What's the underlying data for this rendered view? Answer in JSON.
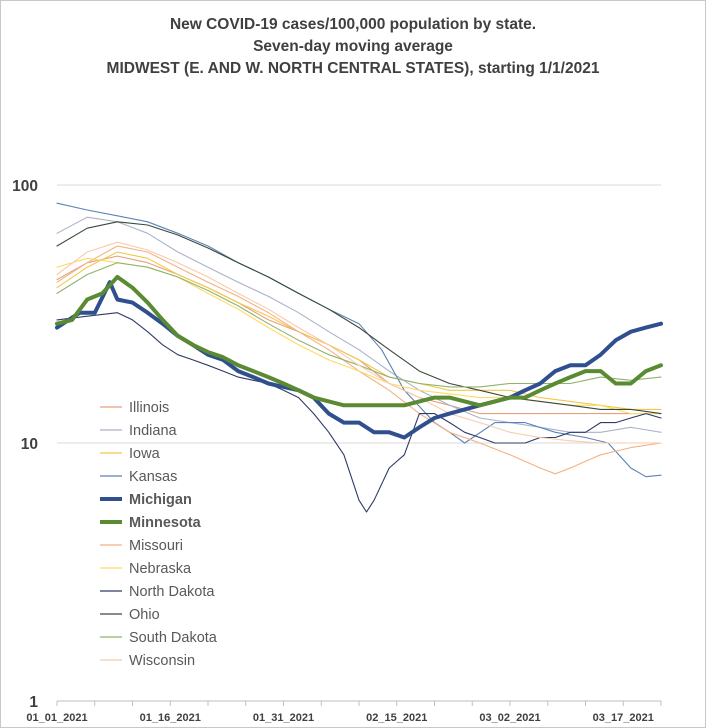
{
  "chart_data": {
    "type": "line",
    "title": [
      "New COVID-19 cases/100,000 population by state.",
      "Seven-day moving average",
      "MIDWEST (E. AND W. NORTH CENTRAL STATES), starting 1/1/2021"
    ],
    "y_scale": "log",
    "ylim": [
      1,
      100
    ],
    "y_ticks": [
      "1",
      "10",
      "100"
    ],
    "x_ticks": [
      "01_01_2021",
      "01_16_2021",
      "01_31_2021",
      "02_15_2021",
      "03_02_2021",
      "03_17_2021"
    ],
    "x_range_days": [
      0,
      80
    ],
    "grid": "horizontal major gridlines only",
    "legend_position": "left, inside plot area",
    "series": [
      {
        "name": "Illinois",
        "color": "#e6a07a",
        "bold": false,
        "points": [
          [
            0,
            43
          ],
          [
            4,
            50
          ],
          [
            8,
            53
          ],
          [
            12,
            50
          ],
          [
            16,
            45
          ],
          [
            20,
            40
          ],
          [
            24,
            35
          ],
          [
            28,
            30
          ],
          [
            32,
            27
          ],
          [
            36,
            24
          ],
          [
            40,
            21
          ],
          [
            44,
            17
          ],
          [
            48,
            15
          ],
          [
            52,
            14
          ],
          [
            56,
            13
          ],
          [
            60,
            13
          ],
          [
            64,
            13
          ],
          [
            68,
            13
          ],
          [
            72,
            13
          ],
          [
            76,
            13
          ],
          [
            80,
            13
          ]
        ]
      },
      {
        "name": "Indiana",
        "color": "#a9b4c8",
        "bold": false,
        "points": [
          [
            0,
            65
          ],
          [
            4,
            75
          ],
          [
            8,
            72
          ],
          [
            12,
            65
          ],
          [
            16,
            55
          ],
          [
            20,
            48
          ],
          [
            24,
            42
          ],
          [
            28,
            37
          ],
          [
            32,
            32
          ],
          [
            36,
            27
          ],
          [
            40,
            23
          ],
          [
            44,
            19
          ],
          [
            48,
            16
          ],
          [
            52,
            14
          ],
          [
            56,
            12.5
          ],
          [
            60,
            12
          ],
          [
            64,
            11.5
          ],
          [
            68,
            11
          ],
          [
            72,
            11
          ],
          [
            76,
            11.5
          ],
          [
            80,
            11
          ]
        ]
      },
      {
        "name": "Iowa",
        "color": "#f2c84b",
        "bold": false,
        "points": [
          [
            0,
            40
          ],
          [
            4,
            48
          ],
          [
            8,
            55
          ],
          [
            12,
            52
          ],
          [
            16,
            45
          ],
          [
            20,
            40
          ],
          [
            24,
            35
          ],
          [
            28,
            31
          ],
          [
            32,
            27
          ],
          [
            36,
            24
          ],
          [
            40,
            21
          ],
          [
            44,
            18
          ],
          [
            48,
            17
          ],
          [
            52,
            16
          ],
          [
            56,
            16
          ],
          [
            60,
            16
          ],
          [
            64,
            15
          ],
          [
            68,
            14.5
          ],
          [
            72,
            14
          ],
          [
            76,
            13.5
          ],
          [
            80,
            13.5
          ]
        ]
      },
      {
        "name": "Kansas",
        "color": "#5b82b9",
        "bold": false,
        "points": [
          [
            0,
            85
          ],
          [
            4,
            80
          ],
          [
            8,
            76
          ],
          [
            12,
            72
          ],
          [
            16,
            65
          ],
          [
            20,
            58
          ],
          [
            24,
            50
          ],
          [
            28,
            44
          ],
          [
            32,
            38
          ],
          [
            36,
            33
          ],
          [
            40,
            29
          ],
          [
            43,
            23
          ],
          [
            46,
            16
          ],
          [
            50,
            12
          ],
          [
            52,
            11
          ],
          [
            54,
            10
          ],
          [
            58,
            12
          ],
          [
            62,
            12
          ],
          [
            66,
            11
          ],
          [
            70,
            10.5
          ],
          [
            73,
            10
          ],
          [
            76,
            8
          ],
          [
            78,
            7.4
          ],
          [
            80,
            7.5
          ]
        ]
      },
      {
        "name": "Michigan",
        "color": "#2f4f8f",
        "bold": true,
        "points": [
          [
            0,
            28
          ],
          [
            3,
            32
          ],
          [
            5,
            32
          ],
          [
            7,
            42
          ],
          [
            8,
            36
          ],
          [
            10,
            35
          ],
          [
            12,
            32
          ],
          [
            14,
            29
          ],
          [
            16,
            26
          ],
          [
            18,
            24
          ],
          [
            20,
            22
          ],
          [
            22,
            21
          ],
          [
            24,
            19
          ],
          [
            26,
            18
          ],
          [
            28,
            17
          ],
          [
            30,
            16.5
          ],
          [
            32,
            16
          ],
          [
            34,
            15
          ],
          [
            36,
            13
          ],
          [
            38,
            12
          ],
          [
            40,
            12
          ],
          [
            42,
            11
          ],
          [
            44,
            11
          ],
          [
            46,
            10.5
          ],
          [
            48,
            11.5
          ],
          [
            50,
            12.5
          ],
          [
            52,
            13
          ],
          [
            54,
            13.5
          ],
          [
            56,
            14
          ],
          [
            58,
            14.5
          ],
          [
            60,
            15
          ],
          [
            62,
            16
          ],
          [
            64,
            17
          ],
          [
            66,
            19
          ],
          [
            68,
            20
          ],
          [
            70,
            20
          ],
          [
            72,
            22
          ],
          [
            74,
            25
          ],
          [
            76,
            27
          ],
          [
            78,
            28
          ],
          [
            80,
            29
          ]
        ]
      },
      {
        "name": "Minnesota",
        "color": "#5a8a32",
        "bold": true,
        "points": [
          [
            0,
            29
          ],
          [
            2,
            30
          ],
          [
            4,
            36
          ],
          [
            6,
            38
          ],
          [
            8,
            44
          ],
          [
            10,
            40
          ],
          [
            12,
            35
          ],
          [
            14,
            30
          ],
          [
            16,
            26
          ],
          [
            18,
            24
          ],
          [
            20,
            22.5
          ],
          [
            22,
            21.5
          ],
          [
            24,
            20
          ],
          [
            26,
            19
          ],
          [
            28,
            18
          ],
          [
            30,
            17
          ],
          [
            32,
            16
          ],
          [
            34,
            15
          ],
          [
            36,
            14.5
          ],
          [
            38,
            14
          ],
          [
            40,
            14
          ],
          [
            42,
            14
          ],
          [
            44,
            14
          ],
          [
            46,
            14
          ],
          [
            48,
            14.5
          ],
          [
            50,
            15
          ],
          [
            52,
            15
          ],
          [
            54,
            14.5
          ],
          [
            56,
            14
          ],
          [
            58,
            14.5
          ],
          [
            60,
            15
          ],
          [
            62,
            15
          ],
          [
            64,
            16
          ],
          [
            66,
            17
          ],
          [
            68,
            18
          ],
          [
            70,
            19
          ],
          [
            72,
            19
          ],
          [
            74,
            17
          ],
          [
            76,
            17
          ],
          [
            78,
            19
          ],
          [
            80,
            20
          ]
        ]
      },
      {
        "name": "Missouri",
        "color": "#f4b183",
        "bold": false,
        "points": [
          [
            0,
            42
          ],
          [
            4,
            50
          ],
          [
            8,
            58
          ],
          [
            12,
            55
          ],
          [
            16,
            48
          ],
          [
            20,
            42
          ],
          [
            24,
            37
          ],
          [
            28,
            32
          ],
          [
            32,
            27
          ],
          [
            36,
            23
          ],
          [
            40,
            19
          ],
          [
            44,
            16
          ],
          [
            48,
            13
          ],
          [
            52,
            11
          ],
          [
            56,
            10
          ],
          [
            60,
            9
          ],
          [
            64,
            8
          ],
          [
            66,
            7.6
          ],
          [
            68,
            8
          ],
          [
            72,
            9
          ],
          [
            76,
            9.6
          ],
          [
            80,
            10
          ]
        ]
      },
      {
        "name": "Nebraska",
        "color": "#ffd966",
        "bold": false,
        "points": [
          [
            0,
            48
          ],
          [
            4,
            52
          ],
          [
            8,
            50
          ],
          [
            12,
            48
          ],
          [
            16,
            44
          ],
          [
            20,
            38
          ],
          [
            24,
            33
          ],
          [
            28,
            28
          ],
          [
            32,
            24
          ],
          [
            36,
            21
          ],
          [
            40,
            19
          ],
          [
            44,
            17
          ],
          [
            48,
            16
          ],
          [
            52,
            15.5
          ],
          [
            56,
            15
          ],
          [
            60,
            15
          ],
          [
            64,
            14.5
          ],
          [
            68,
            14
          ],
          [
            72,
            14
          ],
          [
            76,
            13
          ],
          [
            80,
            13
          ]
        ]
      },
      {
        "name": "North Dakota",
        "color": "#2f3b66",
        "bold": false,
        "points": [
          [
            0,
            30
          ],
          [
            4,
            31
          ],
          [
            8,
            32
          ],
          [
            10,
            30
          ],
          [
            12,
            27
          ],
          [
            14,
            24
          ],
          [
            16,
            22
          ],
          [
            18,
            21
          ],
          [
            20,
            20
          ],
          [
            22,
            19
          ],
          [
            24,
            18
          ],
          [
            26,
            17.5
          ],
          [
            28,
            17
          ],
          [
            30,
            16
          ],
          [
            32,
            15
          ],
          [
            34,
            13
          ],
          [
            36,
            11
          ],
          [
            38,
            9
          ],
          [
            40,
            6
          ],
          [
            41,
            5.4
          ],
          [
            42,
            6
          ],
          [
            44,
            8
          ],
          [
            46,
            9
          ],
          [
            48,
            13
          ],
          [
            50,
            13
          ],
          [
            52,
            12
          ],
          [
            54,
            11
          ],
          [
            56,
            10.5
          ],
          [
            58,
            10
          ],
          [
            60,
            10
          ],
          [
            62,
            10
          ],
          [
            64,
            10.5
          ],
          [
            66,
            10.5
          ],
          [
            68,
            11
          ],
          [
            70,
            11
          ],
          [
            72,
            12
          ],
          [
            74,
            12
          ],
          [
            76,
            12.5
          ],
          [
            78,
            13
          ],
          [
            80,
            12.5
          ]
        ]
      },
      {
        "name": "Ohio",
        "color": "#3a4a3a",
        "bold": false,
        "points": [
          [
            0,
            58
          ],
          [
            4,
            68
          ],
          [
            8,
            72
          ],
          [
            12,
            70
          ],
          [
            16,
            64
          ],
          [
            20,
            57
          ],
          [
            24,
            50
          ],
          [
            28,
            44
          ],
          [
            32,
            38
          ],
          [
            36,
            33
          ],
          [
            40,
            28
          ],
          [
            44,
            23
          ],
          [
            48,
            19
          ],
          [
            52,
            17
          ],
          [
            56,
            16
          ],
          [
            60,
            15
          ],
          [
            64,
            14.5
          ],
          [
            68,
            14
          ],
          [
            72,
            13.5
          ],
          [
            76,
            13.5
          ],
          [
            80,
            13
          ]
        ]
      },
      {
        "name": "South Dakota",
        "color": "#8fb46b",
        "bold": false,
        "points": [
          [
            0,
            38
          ],
          [
            4,
            45
          ],
          [
            8,
            50
          ],
          [
            12,
            48
          ],
          [
            16,
            44
          ],
          [
            20,
            39
          ],
          [
            24,
            34
          ],
          [
            28,
            29
          ],
          [
            32,
            25
          ],
          [
            36,
            22
          ],
          [
            40,
            20
          ],
          [
            44,
            18
          ],
          [
            48,
            17
          ],
          [
            52,
            16.5
          ],
          [
            56,
            16.5
          ],
          [
            60,
            17
          ],
          [
            64,
            17
          ],
          [
            68,
            17
          ],
          [
            72,
            18
          ],
          [
            76,
            17.5
          ],
          [
            80,
            18
          ]
        ]
      },
      {
        "name": "Wisconsin",
        "color": "#f8cbad",
        "bold": false,
        "points": [
          [
            0,
            45
          ],
          [
            4,
            55
          ],
          [
            8,
            60
          ],
          [
            12,
            56
          ],
          [
            16,
            50
          ],
          [
            20,
            44
          ],
          [
            24,
            38
          ],
          [
            28,
            33
          ],
          [
            32,
            28
          ],
          [
            36,
            24
          ],
          [
            40,
            20
          ],
          [
            44,
            17
          ],
          [
            48,
            15
          ],
          [
            52,
            13
          ],
          [
            56,
            12
          ],
          [
            60,
            11
          ],
          [
            64,
            10.5
          ],
          [
            68,
            10.2
          ],
          [
            72,
            10
          ],
          [
            76,
            10
          ],
          [
            80,
            10
          ]
        ]
      }
    ]
  }
}
